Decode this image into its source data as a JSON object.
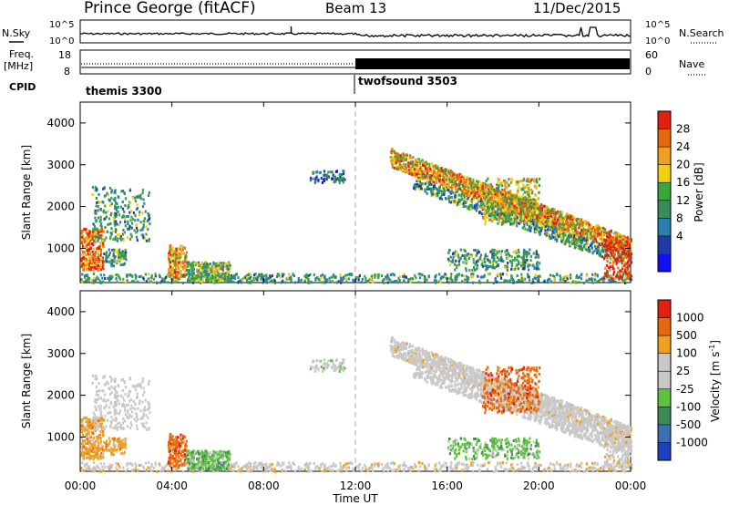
{
  "header": {
    "station": "Prince George (fitACF)",
    "beam": "Beam 13",
    "date": "11/Dec/2015"
  },
  "top_panels": {
    "nsky_label": "N.Sky",
    "nsearch_label": "N.Search",
    "log_ticks": [
      "10^5",
      "10^0"
    ],
    "freq_label_1": "Freq.",
    "freq_label_2": "[MHz]",
    "freq_ticks": [
      "18",
      "8"
    ],
    "nave_ticks": [
      "60",
      "0"
    ],
    "nave_label": "Nave",
    "cpid_label": "CPID",
    "cpid_segments": [
      {
        "name": "themis 3300",
        "start_hour": 0,
        "end_hour": 12
      },
      {
        "name": "twofsound 3503",
        "start_hour": 12,
        "end_hour": 24
      }
    ]
  },
  "x_axis": {
    "label": "Time UT",
    "ticks": [
      "00:00",
      "04:00",
      "08:00",
      "12:00",
      "16:00",
      "20:00",
      "00:00"
    ],
    "range_hours": [
      0,
      24
    ]
  },
  "colors": {
    "power_scale": [
      "#1010f0",
      "#1e3ca8",
      "#2a7fb0",
      "#3c8c5a",
      "#3aa838",
      "#f0d010",
      "#f0a020",
      "#e86810",
      "#e02010"
    ],
    "velocity_scale": [
      "#2040c0",
      "#3a70b0",
      "#3c8c5a",
      "#60c040",
      "#c8c8c8",
      "#c8c8c8",
      "#f0a020",
      "#e86810",
      "#e02010"
    ]
  },
  "chart_data": [
    {
      "type": "heatmap",
      "title": "",
      "ylabel": "Slant Range [km]",
      "xlabel": "",
      "ylim": [
        180,
        4500
      ],
      "yticks": [
        1000,
        2000,
        3000,
        4000
      ],
      "colorbar_label": "Power [dB]",
      "colorbar_ticks": [
        "28",
        "24",
        "20",
        "16",
        "12",
        "8",
        "4"
      ],
      "colorbar_range": [
        0,
        30
      ]
    },
    {
      "type": "heatmap",
      "title": "",
      "ylabel": "Slant Range [km]",
      "xlabel": "Time UT",
      "ylim": [
        180,
        4500
      ],
      "yticks": [
        1000,
        2000,
        3000,
        4000
      ],
      "colorbar_label": "Velocity [m s^-1]",
      "colorbar_ticks": [
        "1000",
        "500",
        "100",
        "25",
        "-25",
        "-100",
        "-500",
        "-1000"
      ],
      "colorbar_range": [
        -1000,
        1000
      ]
    }
  ]
}
